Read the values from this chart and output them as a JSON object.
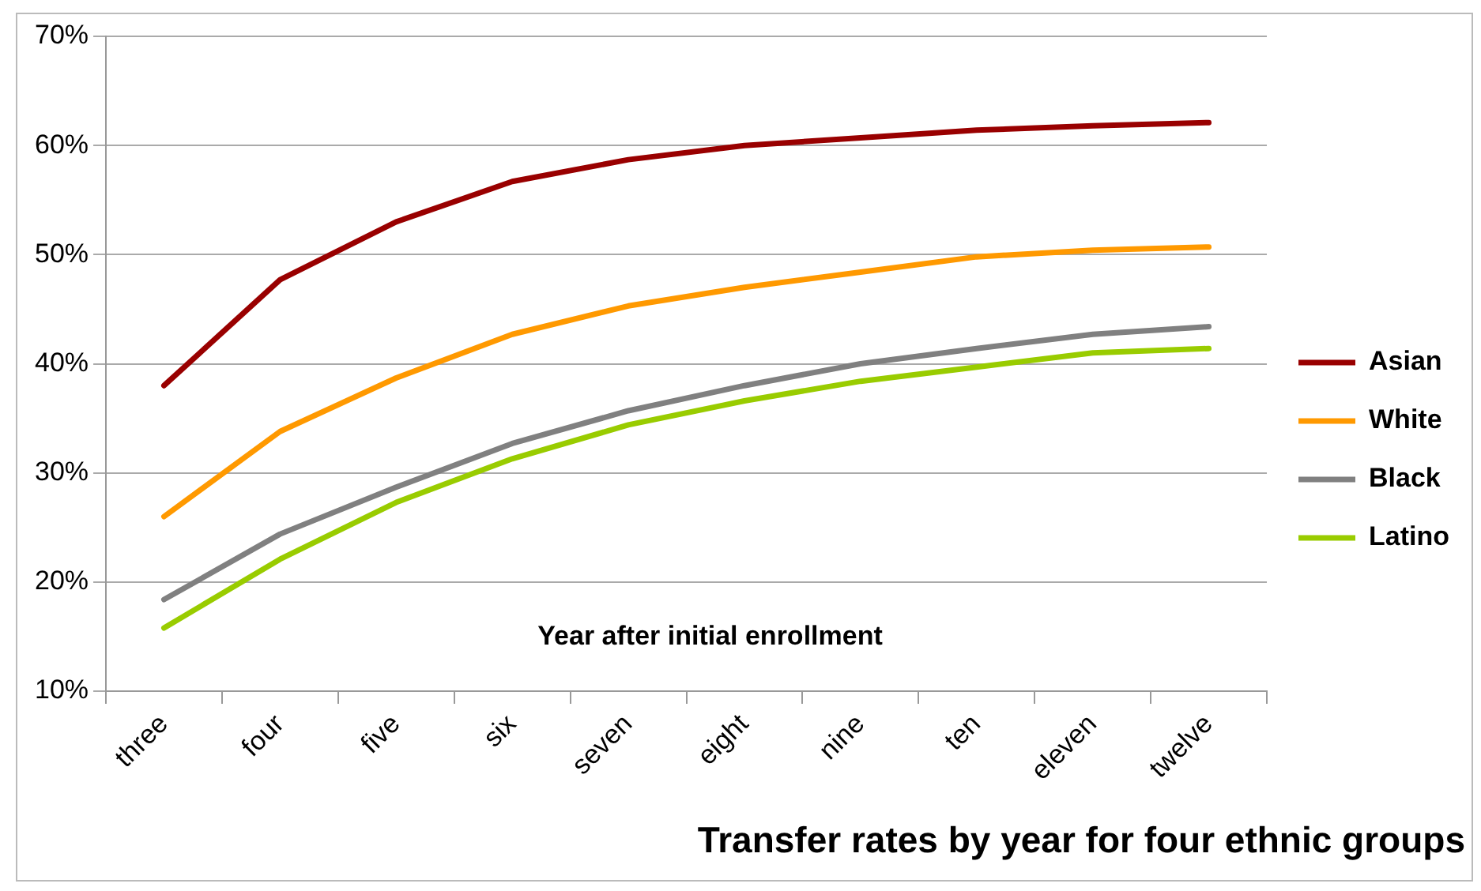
{
  "chart_data": {
    "type": "line",
    "title": "Transfer rates by year for four ethnic groups",
    "xlabel": "Year after initial enrollment",
    "categories": [
      "three",
      "four",
      "five",
      "six",
      "seven",
      "eight",
      "nine",
      "ten",
      "eleven",
      "twelve"
    ],
    "series": [
      {
        "name": "Asian",
        "color": "#990000",
        "values": [
          38,
          47.7,
          53,
          56.7,
          58.7,
          60,
          60.7,
          61.4,
          61.8,
          62.1
        ]
      },
      {
        "name": "White",
        "color": "#ff9900",
        "values": [
          26,
          33.8,
          38.7,
          42.7,
          45.3,
          47,
          48.4,
          49.8,
          50.4,
          50.7
        ]
      },
      {
        "name": "Black",
        "color": "#808080",
        "values": [
          18.4,
          24.4,
          28.7,
          32.7,
          35.7,
          38,
          40,
          41.4,
          42.7,
          43.4
        ]
      },
      {
        "name": "Latino",
        "color": "#99cc00",
        "values": [
          15.8,
          22.1,
          27.3,
          31.3,
          34.4,
          36.6,
          38.4,
          39.7,
          41,
          41.4
        ]
      }
    ],
    "ylim": [
      10,
      70
    ],
    "yticks": [
      {
        "value": 10,
        "label": "10%"
      },
      {
        "value": 20,
        "label": "20%"
      },
      {
        "value": 30,
        "label": "30%"
      },
      {
        "value": 40,
        "label": "40%"
      },
      {
        "value": 50,
        "label": "50%"
      },
      {
        "value": 60,
        "label": "60%"
      },
      {
        "value": 70,
        "label": "70%"
      }
    ],
    "grid": "y",
    "legend": "right",
    "marker": "none",
    "line_style": "solid"
  }
}
